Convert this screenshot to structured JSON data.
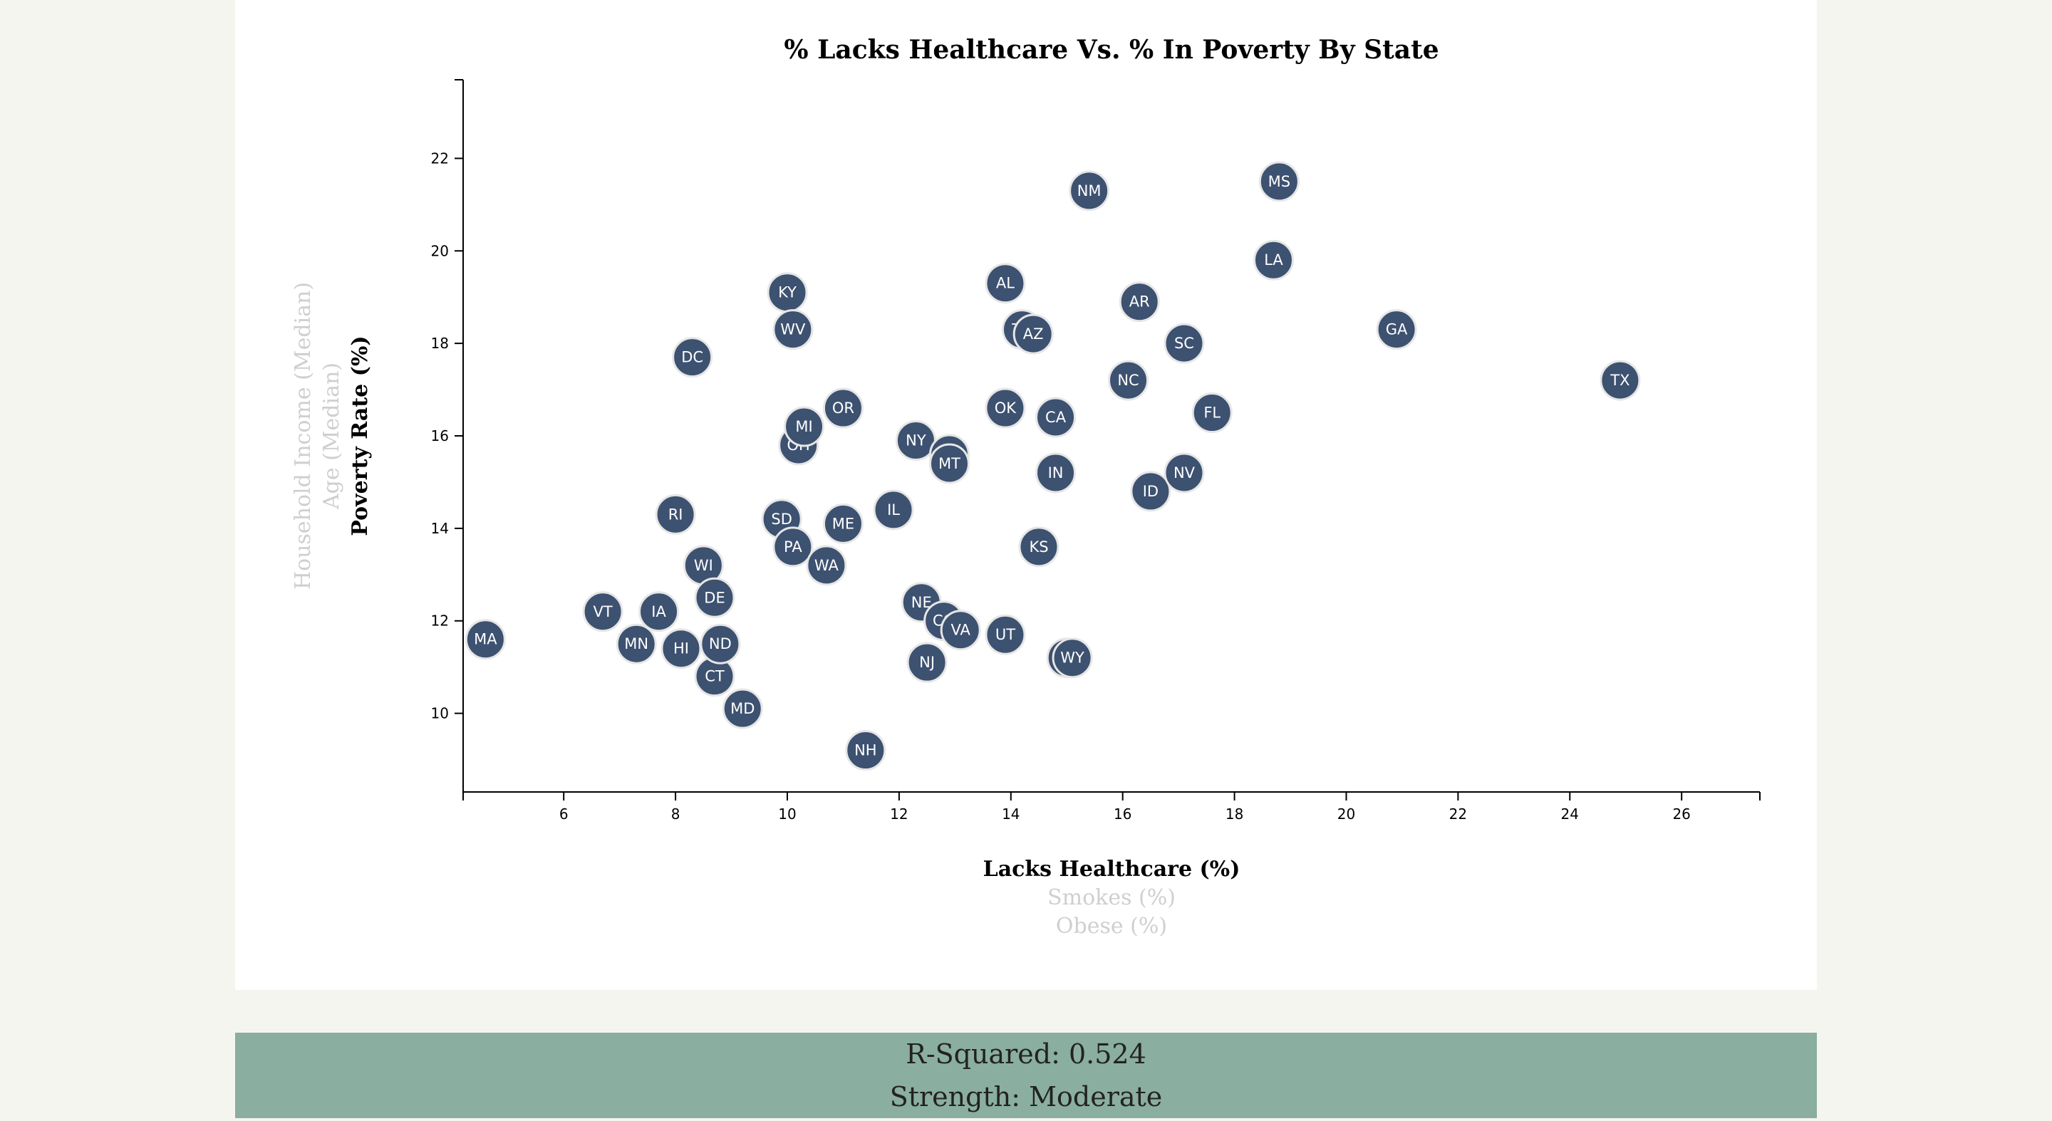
{
  "chart_data": {
    "type": "scatter",
    "title": "% Lacks Healthcare Vs. % In Poverty By State",
    "x_axis_labels": [
      {
        "text": "Lacks Healthcare (%)",
        "active": true
      },
      {
        "text": "Smokes (%)",
        "active": false
      },
      {
        "text": "Obese (%)",
        "active": false
      }
    ],
    "y_axis_labels": [
      {
        "text": "Poverty Rate (%)",
        "active": true
      },
      {
        "text": "Age (Median)",
        "active": false
      },
      {
        "text": "Household Income (Median)",
        "active": false
      }
    ],
    "xlim": [
      4.2,
      27.4
    ],
    "ylim": [
      8.3,
      23.7
    ],
    "x_ticks": [
      6,
      8,
      10,
      12,
      14,
      16,
      18,
      20,
      22,
      24,
      26
    ],
    "y_ticks": [
      10,
      12,
      14,
      16,
      18,
      20,
      22
    ],
    "marker_color": "#3d5170",
    "points": [
      {
        "abbr": "MA",
        "x": 4.6,
        "y": 11.6
      },
      {
        "abbr": "VT",
        "x": 6.7,
        "y": 12.2
      },
      {
        "abbr": "MN",
        "x": 7.3,
        "y": 11.5
      },
      {
        "abbr": "IA",
        "x": 7.7,
        "y": 12.2
      },
      {
        "abbr": "RI",
        "x": 8.0,
        "y": 14.3
      },
      {
        "abbr": "HI",
        "x": 8.1,
        "y": 11.4
      },
      {
        "abbr": "DC",
        "x": 8.3,
        "y": 17.7
      },
      {
        "abbr": "WI",
        "x": 8.5,
        "y": 13.2
      },
      {
        "abbr": "DE",
        "x": 8.7,
        "y": 12.5
      },
      {
        "abbr": "CT",
        "x": 8.7,
        "y": 10.8
      },
      {
        "abbr": "ND",
        "x": 8.8,
        "y": 11.5
      },
      {
        "abbr": "MD",
        "x": 9.2,
        "y": 10.1
      },
      {
        "abbr": "SD",
        "x": 9.9,
        "y": 14.2
      },
      {
        "abbr": "KY",
        "x": 10.0,
        "y": 19.1
      },
      {
        "abbr": "WV",
        "x": 10.1,
        "y": 18.3
      },
      {
        "abbr": "PA",
        "x": 10.1,
        "y": 13.6
      },
      {
        "abbr": "OH",
        "x": 10.2,
        "y": 15.8
      },
      {
        "abbr": "MI",
        "x": 10.3,
        "y": 16.2
      },
      {
        "abbr": "WA",
        "x": 10.7,
        "y": 13.2
      },
      {
        "abbr": "OR",
        "x": 11.0,
        "y": 16.6
      },
      {
        "abbr": "ME",
        "x": 11.0,
        "y": 14.1
      },
      {
        "abbr": "NH",
        "x": 11.4,
        "y": 9.2
      },
      {
        "abbr": "IL",
        "x": 11.9,
        "y": 14.4
      },
      {
        "abbr": "NY",
        "x": 12.3,
        "y": 15.9
      },
      {
        "abbr": "NE",
        "x": 12.4,
        "y": 12.4
      },
      {
        "abbr": "NJ",
        "x": 12.5,
        "y": 11.1
      },
      {
        "abbr": "CO",
        "x": 12.8,
        "y": 12.0
      },
      {
        "abbr": "MO",
        "x": 12.9,
        "y": 15.6
      },
      {
        "abbr": "MT",
        "x": 12.9,
        "y": 15.4
      },
      {
        "abbr": "VA",
        "x": 13.1,
        "y": 11.8
      },
      {
        "abbr": "OK",
        "x": 13.9,
        "y": 16.6
      },
      {
        "abbr": "AL",
        "x": 13.9,
        "y": 19.3
      },
      {
        "abbr": "UT",
        "x": 13.9,
        "y": 11.7
      },
      {
        "abbr": "TN",
        "x": 14.2,
        "y": 18.3
      },
      {
        "abbr": "AZ",
        "x": 14.4,
        "y": 18.2
      },
      {
        "abbr": "KS",
        "x": 14.5,
        "y": 13.6
      },
      {
        "abbr": "CA",
        "x": 14.8,
        "y": 16.4
      },
      {
        "abbr": "IN",
        "x": 14.8,
        "y": 15.2
      },
      {
        "abbr": "AK",
        "x": 15.0,
        "y": 11.2
      },
      {
        "abbr": "WY",
        "x": 15.1,
        "y": 11.2
      },
      {
        "abbr": "NM",
        "x": 15.4,
        "y": 21.3
      },
      {
        "abbr": "NC",
        "x": 16.1,
        "y": 17.2
      },
      {
        "abbr": "AR",
        "x": 16.3,
        "y": 18.9
      },
      {
        "abbr": "ID",
        "x": 16.5,
        "y": 14.8
      },
      {
        "abbr": "SC",
        "x": 17.1,
        "y": 18.0
      },
      {
        "abbr": "NV",
        "x": 17.1,
        "y": 15.2
      },
      {
        "abbr": "FL",
        "x": 17.6,
        "y": 16.5
      },
      {
        "abbr": "LA",
        "x": 18.7,
        "y": 19.8
      },
      {
        "abbr": "MS",
        "x": 18.8,
        "y": 21.5
      },
      {
        "abbr": "GA",
        "x": 20.9,
        "y": 18.3
      },
      {
        "abbr": "TX",
        "x": 24.9,
        "y": 17.2
      }
    ]
  },
  "stats": {
    "r_squared": "R-Squared: 0.524",
    "strength": "Strength: Moderate"
  }
}
